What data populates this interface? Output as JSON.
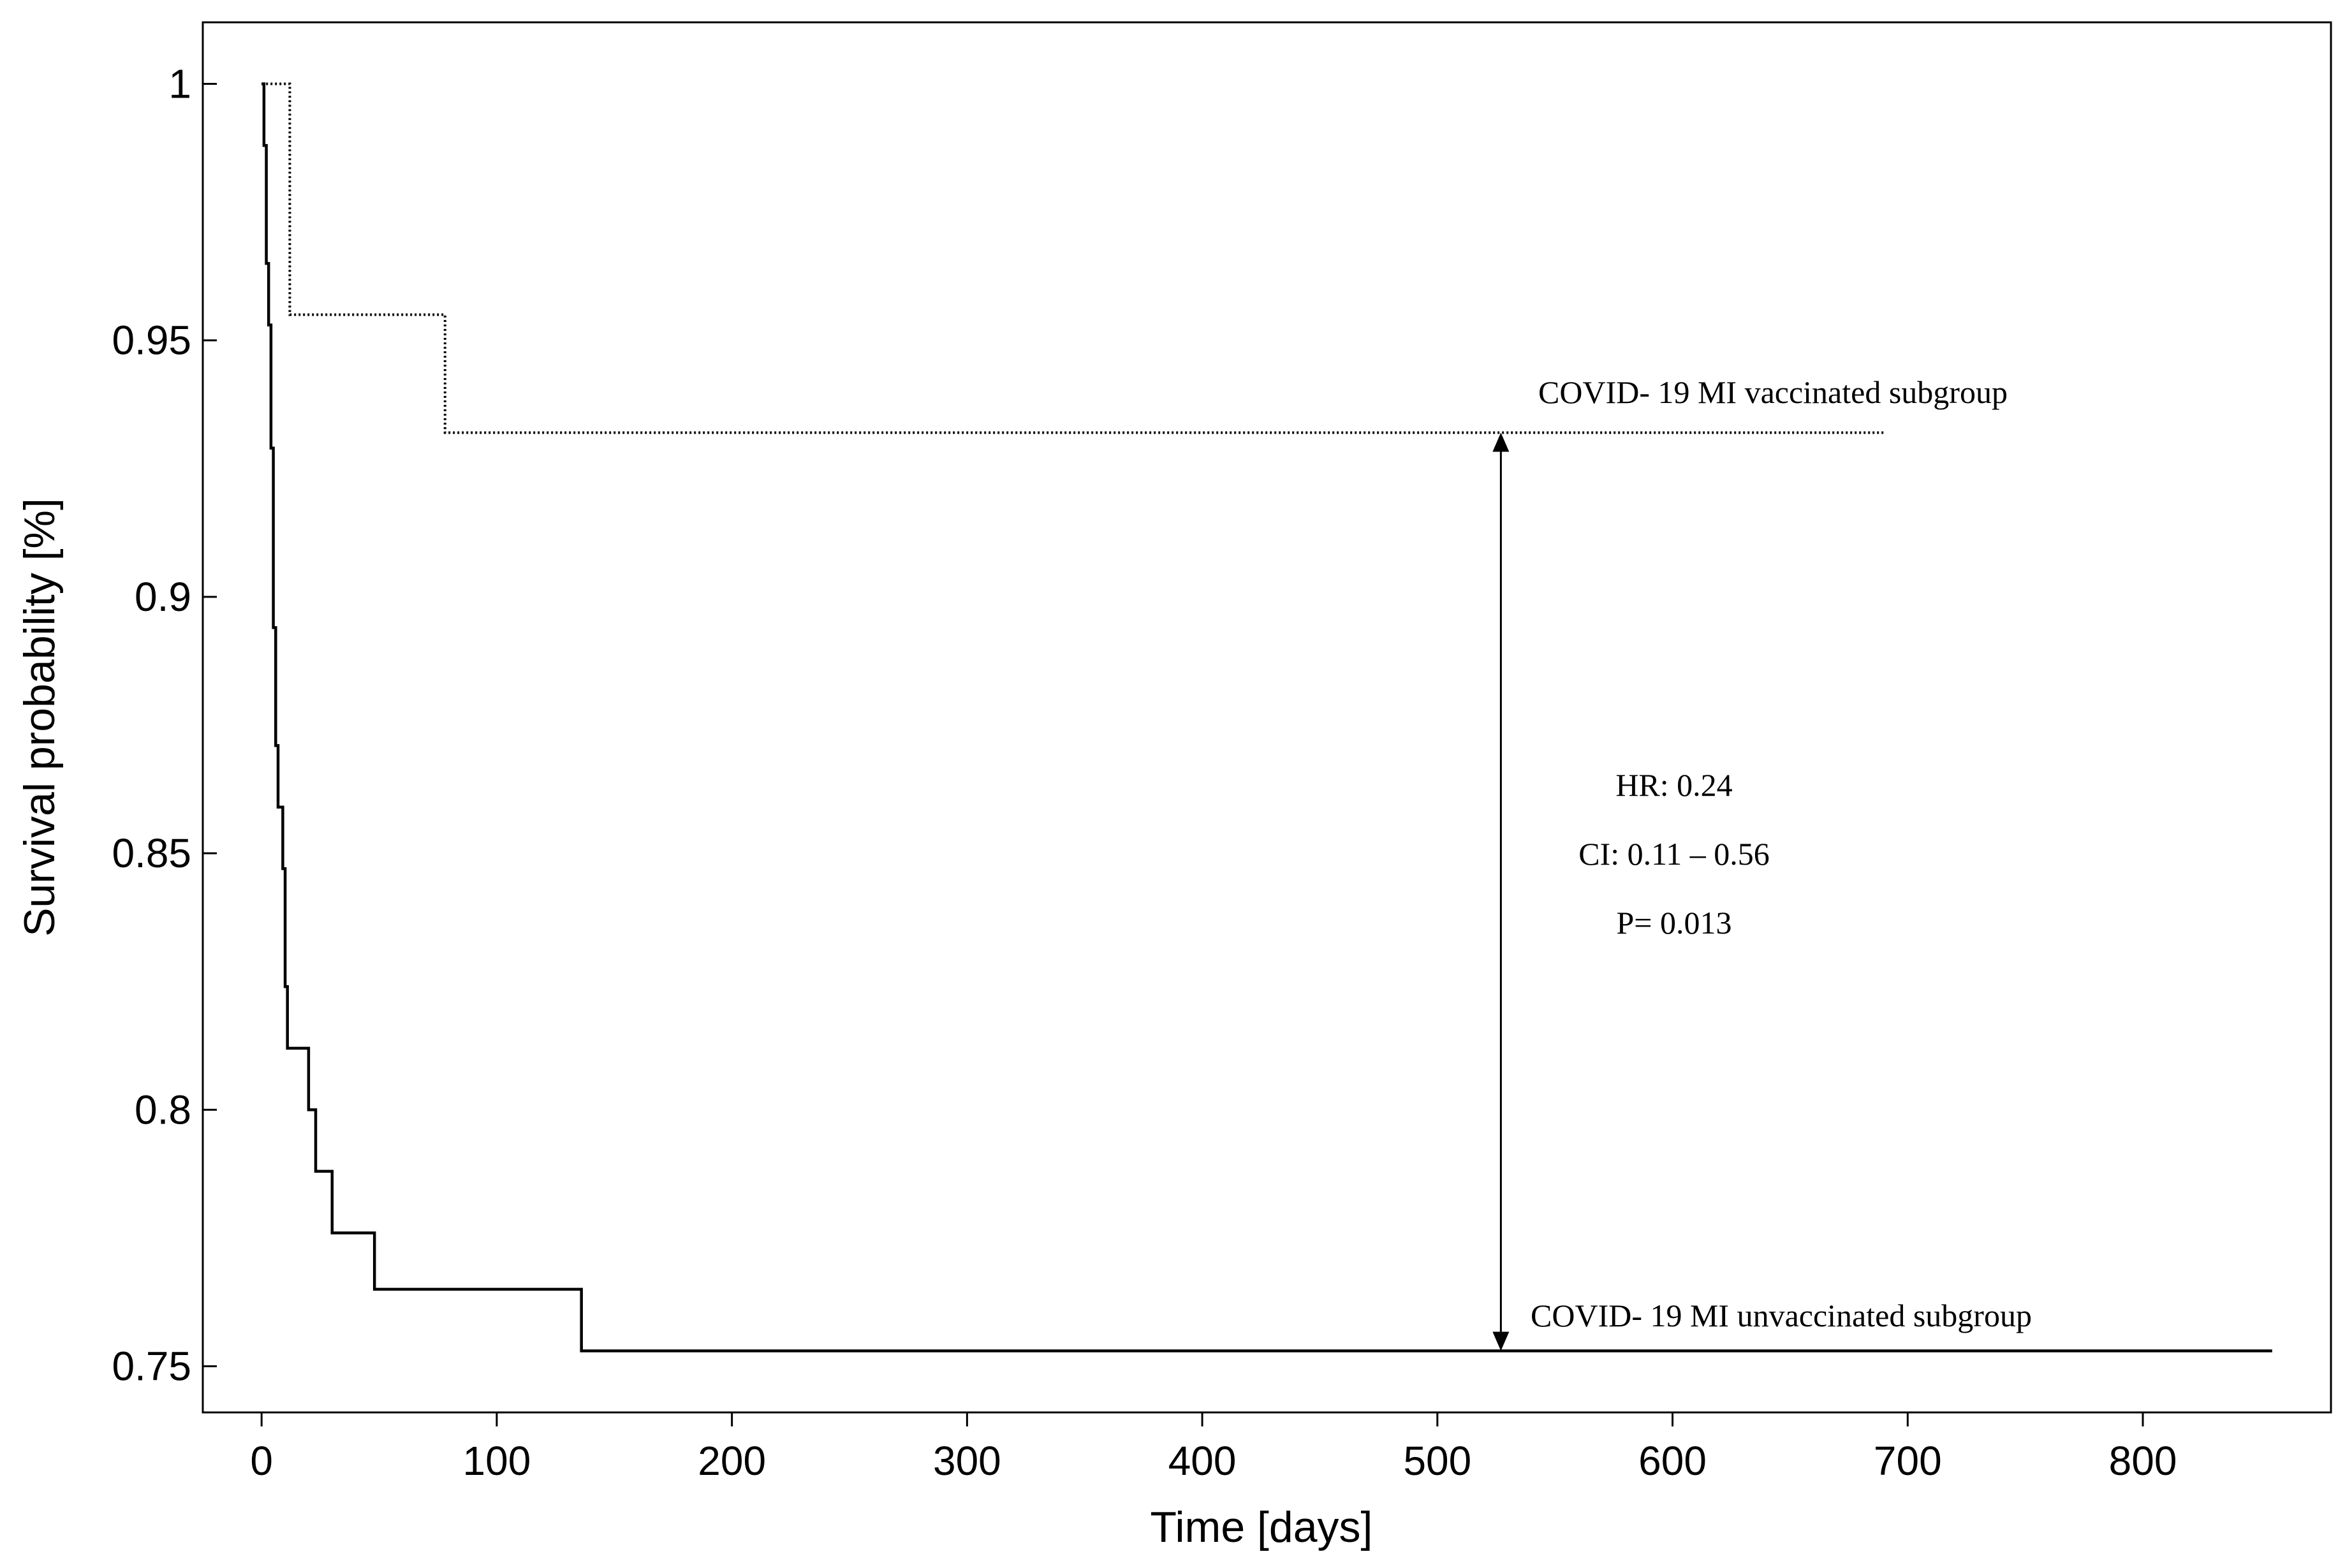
{
  "chart_data": {
    "type": "line",
    "xlabel": "Time [days]",
    "ylabel": "Survival probability [%]",
    "xlim": [
      -25,
      880
    ],
    "ylim": [
      0.741,
      1.012
    ],
    "x_ticks": [
      0,
      100,
      200,
      300,
      400,
      500,
      600,
      700,
      800
    ],
    "y_ticks": [
      0.75,
      0.8,
      0.85,
      0.9,
      0.95,
      1
    ],
    "y_tick_labels": [
      "0.75",
      "0.8",
      "0.85",
      "0.9",
      "0.95",
      "1"
    ],
    "grid": false,
    "series": [
      {
        "name": "COVID- 19 MI vaccinated subgroup",
        "style": "dotted",
        "color": "#000000",
        "step": [
          [
            0,
            1.0
          ],
          [
            12,
            1.0
          ],
          [
            12,
            0.955
          ],
          [
            78,
            0.955
          ],
          [
            78,
            0.932
          ],
          [
            690,
            0.932
          ]
        ]
      },
      {
        "name": "COVID- 19 MI unvaccinated subgroup",
        "style": "solid",
        "color": "#000000",
        "step": [
          [
            0,
            1.0
          ],
          [
            1,
            1.0
          ],
          [
            1,
            0.988
          ],
          [
            2,
            0.988
          ],
          [
            2,
            0.965
          ],
          [
            3,
            0.965
          ],
          [
            3,
            0.953
          ],
          [
            4,
            0.953
          ],
          [
            4,
            0.929
          ],
          [
            5,
            0.929
          ],
          [
            5,
            0.894
          ],
          [
            6,
            0.894
          ],
          [
            6,
            0.871
          ],
          [
            7,
            0.871
          ],
          [
            7,
            0.859
          ],
          [
            9,
            0.859
          ],
          [
            9,
            0.847
          ],
          [
            10,
            0.847
          ],
          [
            10,
            0.824
          ],
          [
            11,
            0.824
          ],
          [
            11,
            0.812
          ],
          [
            20,
            0.812
          ],
          [
            20,
            0.8
          ],
          [
            23,
            0.8
          ],
          [
            23,
            0.788
          ],
          [
            30,
            0.788
          ],
          [
            30,
            0.776
          ],
          [
            48,
            0.776
          ],
          [
            48,
            0.765
          ],
          [
            136,
            0.765
          ],
          [
            136,
            0.753
          ],
          [
            855,
            0.753
          ]
        ]
      }
    ],
    "annotations": {
      "vaccinated_label": "COVID- 19 MI vaccinated subgroup",
      "unvaccinated_label": "COVID- 19 MI unvaccinated subgroup",
      "hr": "HR: 0.24",
      "ci": "CI: 0.11 – 0.56",
      "p": "P= 0.013",
      "arrow_x": 527,
      "arrow_y_top": 0.932,
      "arrow_y_bottom": 0.753
    }
  }
}
